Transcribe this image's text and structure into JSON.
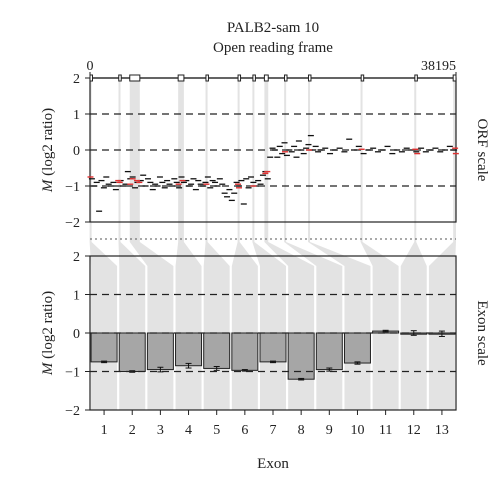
{
  "chart_data": [
    {
      "panel": "orf",
      "type": "scatter",
      "title": "PALB2-sam 10",
      "subtitle": "Open reading frame",
      "ylabel_prefix": "M",
      "ylabel_suffix": " (log2 ratio)",
      "side_label": "ORF scale",
      "x_tick_labels": [
        "0",
        "38195"
      ],
      "xlim": [
        0,
        38195
      ],
      "ylim": [
        -2,
        2
      ],
      "y_ticks": [
        2,
        1,
        0,
        -1,
        -2
      ],
      "dashed_lines": [
        1,
        0,
        -1
      ],
      "exons": [
        {
          "start": 0,
          "end": 130
        },
        {
          "start": 3000,
          "end": 3160
        },
        {
          "start": 4150,
          "end": 5200
        },
        {
          "start": 9200,
          "end": 9800
        },
        {
          "start": 12100,
          "end": 12230
        },
        {
          "start": 15450,
          "end": 15570
        },
        {
          "start": 17000,
          "end": 17100
        },
        {
          "start": 18200,
          "end": 18600
        },
        {
          "start": 20300,
          "end": 20430
        },
        {
          "start": 22800,
          "end": 22920
        },
        {
          "start": 28300,
          "end": 28380
        },
        {
          "start": 33900,
          "end": 33980
        },
        {
          "start": 37900,
          "end": 38195
        }
      ],
      "probes_black": [
        [
          200,
          -0.8
        ],
        [
          450,
          -1.0
        ],
        [
          700,
          -0.9
        ],
        [
          950,
          -1.7
        ],
        [
          1200,
          -0.85
        ],
        [
          1450,
          -1.05
        ],
        [
          1700,
          -0.75
        ],
        [
          1950,
          -0.95
        ],
        [
          2200,
          -1.0
        ],
        [
          2450,
          -0.9
        ],
        [
          2700,
          -1.1
        ],
        [
          3200,
          -0.85
        ],
        [
          3450,
          -1.0
        ],
        [
          3700,
          -0.95
        ],
        [
          3950,
          -0.6
        ],
        [
          4200,
          -0.8
        ],
        [
          4450,
          -0.75
        ],
        [
          4700,
          -1.05
        ],
        [
          4950,
          -0.9
        ],
        [
          5300,
          -0.85
        ],
        [
          5550,
          -0.7
        ],
        [
          5800,
          -1.0
        ],
        [
          6050,
          -0.8
        ],
        [
          6300,
          -0.9
        ],
        [
          6550,
          -1.1
        ],
        [
          6800,
          -0.95
        ],
        [
          7050,
          -1.0
        ],
        [
          7300,
          -0.75
        ],
        [
          7550,
          -0.9
        ],
        [
          7800,
          -1.05
        ],
        [
          8050,
          -0.85
        ],
        [
          8300,
          -0.95
        ],
        [
          8550,
          -1.0
        ],
        [
          8800,
          -0.8
        ],
        [
          9050,
          -0.9
        ],
        [
          9300,
          -1.05
        ],
        [
          9550,
          -0.75
        ],
        [
          9800,
          -0.9
        ],
        [
          10050,
          -0.85
        ],
        [
          10300,
          -1.0
        ],
        [
          10550,
          -0.95
        ],
        [
          10800,
          -0.8
        ],
        [
          11050,
          -1.1
        ],
        [
          11300,
          -0.85
        ],
        [
          11550,
          -0.95
        ],
        [
          11800,
          -1.0
        ],
        [
          12050,
          -0.9
        ],
        [
          12300,
          -0.75
        ],
        [
          12550,
          -1.05
        ],
        [
          12800,
          -0.85
        ],
        [
          13050,
          -0.9
        ],
        [
          13300,
          -1.0
        ],
        [
          13550,
          -0.8
        ],
        [
          13800,
          -0.95
        ],
        [
          14050,
          -1.2
        ],
        [
          14300,
          -1.3
        ],
        [
          14550,
          -1.1
        ],
        [
          14800,
          -1.4
        ],
        [
          15050,
          -1.2
        ],
        [
          15300,
          -0.9
        ],
        [
          15550,
          -1.0
        ],
        [
          15800,
          -0.85
        ],
        [
          16050,
          -1.5
        ],
        [
          16300,
          -0.8
        ],
        [
          16550,
          -1.05
        ],
        [
          16800,
          -0.75
        ],
        [
          17050,
          -0.9
        ],
        [
          17300,
          -1.0
        ],
        [
          17550,
          -0.85
        ],
        [
          17800,
          -0.95
        ],
        [
          18050,
          -0.7
        ],
        [
          18300,
          -0.6
        ],
        [
          18550,
          -0.8
        ],
        [
          18800,
          -0.2
        ],
        [
          19050,
          0.05
        ],
        [
          19300,
          0.0
        ],
        [
          19550,
          -0.2
        ],
        [
          19800,
          0.1
        ],
        [
          20050,
          -0.1
        ],
        [
          20300,
          0.2
        ],
        [
          20550,
          -0.15
        ],
        [
          20800,
          0.0
        ],
        [
          21050,
          -0.05
        ],
        [
          21300,
          0.1
        ],
        [
          21550,
          -0.2
        ],
        [
          21800,
          0.25
        ],
        [
          22050,
          0.0
        ],
        [
          22300,
          -0.1
        ],
        [
          22550,
          0.05
        ],
        [
          22800,
          0.15
        ],
        [
          23050,
          0.4
        ],
        [
          23300,
          0.0
        ],
        [
          23550,
          0.1
        ],
        [
          23800,
          -0.05
        ],
        [
          24050,
          0.0
        ],
        [
          24550,
          0.05
        ],
        [
          25050,
          -0.1
        ],
        [
          25550,
          0.0
        ],
        [
          26050,
          0.05
        ],
        [
          26550,
          -0.05
        ],
        [
          27050,
          0.3
        ],
        [
          27550,
          0.0
        ],
        [
          28050,
          0.1
        ],
        [
          28550,
          -0.1
        ],
        [
          29050,
          0.0
        ],
        [
          29550,
          0.05
        ],
        [
          30050,
          -0.05
        ],
        [
          30550,
          0.0
        ],
        [
          31050,
          0.1
        ],
        [
          31550,
          -0.1
        ],
        [
          32050,
          0.0
        ],
        [
          32550,
          -0.05
        ],
        [
          33050,
          0.05
        ],
        [
          33550,
          0.0
        ],
        [
          34050,
          -0.05
        ],
        [
          34550,
          0.05
        ],
        [
          35050,
          -0.05
        ],
        [
          35550,
          0.0
        ],
        [
          36050,
          0.05
        ],
        [
          36550,
          -0.05
        ],
        [
          37050,
          0.0
        ],
        [
          37550,
          0.1
        ],
        [
          38000,
          0.0
        ]
      ],
      "probes_red": [
        [
          50,
          -0.75
        ],
        [
          2950,
          -0.85
        ],
        [
          3100,
          -0.9
        ],
        [
          4200,
          -0.95
        ],
        [
          4450,
          -0.8
        ],
        [
          4900,
          -0.85
        ],
        [
          5150,
          -0.9
        ],
        [
          9250,
          -0.95
        ],
        [
          9650,
          -0.85
        ],
        [
          12150,
          -0.95
        ],
        [
          15450,
          -0.95
        ],
        [
          15550,
          -1.05
        ],
        [
          17050,
          -1.0
        ],
        [
          18300,
          -0.65
        ],
        [
          18500,
          -0.6
        ],
        [
          20350,
          -0.05
        ],
        [
          22850,
          0.0
        ],
        [
          28350,
          0.02
        ],
        [
          33950,
          0.02
        ],
        [
          34150,
          -0.1
        ],
        [
          38100,
          0.05
        ],
        [
          38180,
          -0.1
        ]
      ]
    },
    {
      "panel": "exon",
      "type": "bar",
      "xlabel": "Exon",
      "ylabel_prefix": "M",
      "ylabel_suffix": " (log2 ratio)",
      "side_label": "Exon scale",
      "categories": [
        "1",
        "2",
        "3",
        "4",
        "5",
        "6",
        "7",
        "8",
        "9",
        "10",
        "11",
        "12",
        "13"
      ],
      "values": [
        -0.75,
        -1.0,
        -0.95,
        -0.85,
        -0.92,
        -0.97,
        -0.75,
        -1.2,
        -0.95,
        -0.78,
        0.05,
        0.0,
        -0.02
      ],
      "errors": [
        0.02,
        0.02,
        0.06,
        0.06,
        0.05,
        0.02,
        0.02,
        0.02,
        0.04,
        0.03,
        0.02,
        0.06,
        0.07
      ],
      "ylim": [
        -2,
        2
      ],
      "y_ticks": [
        2,
        1,
        0,
        -1,
        -2
      ],
      "dashed_lines": [
        1,
        0,
        -1
      ]
    }
  ]
}
